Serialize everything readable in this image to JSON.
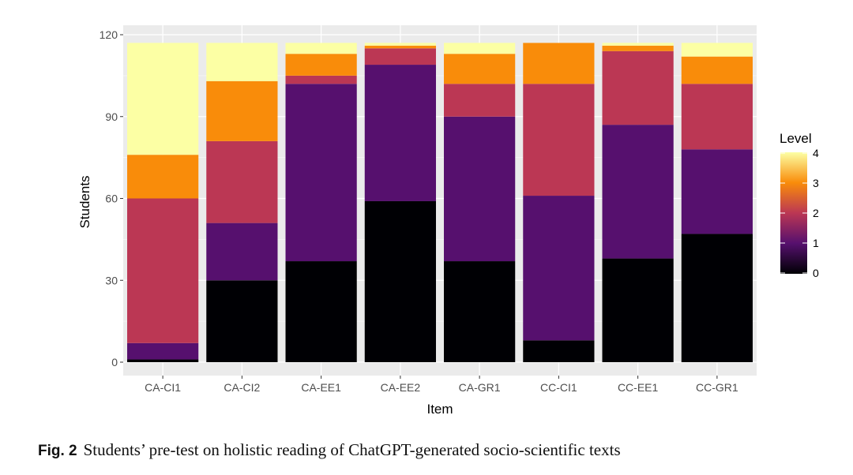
{
  "chart_data": {
    "type": "bar",
    "stacked": true,
    "xlabel": "Item",
    "ylabel": "Students",
    "ylim": [
      0,
      120
    ],
    "yticks": [
      0,
      30,
      60,
      90,
      120
    ],
    "categories": [
      "CA-CI1",
      "CA-CI2",
      "CA-EE1",
      "CA-EE2",
      "CA-GR1",
      "CC-CI1",
      "CC-EE1",
      "CC-GR1"
    ],
    "series": [
      {
        "level": 0,
        "color": "#000004",
        "values": [
          1,
          30,
          37,
          59,
          37,
          8,
          38,
          47
        ]
      },
      {
        "level": 1,
        "color": "#56106e",
        "values": [
          6,
          21,
          65,
          50,
          53,
          53,
          49,
          31
        ]
      },
      {
        "level": 2,
        "color": "#bb3754",
        "values": [
          53,
          30,
          3,
          6,
          12,
          41,
          27,
          24
        ]
      },
      {
        "level": 3,
        "color": "#f98c0a",
        "values": [
          16,
          22,
          8,
          1,
          11,
          15,
          2,
          10
        ]
      },
      {
        "level": 4,
        "color": "#fcffa4",
        "values": [
          41,
          14,
          4,
          1,
          4,
          0,
          1,
          5
        ]
      }
    ],
    "legend": {
      "title": "Level",
      "placement": "right",
      "type": "colorbar",
      "ticks": [
        "0",
        "1",
        "2",
        "3",
        "4"
      ],
      "colors": [
        "#000004",
        "#56106e",
        "#bb3754",
        "#f98c0a",
        "#fcffa4"
      ]
    },
    "grid": true,
    "background": "#ebebeb"
  },
  "caption": {
    "label": "Fig. 2",
    "text": "Students’ pre-test on holistic reading of ChatGPT-generated socio-scientific texts"
  }
}
